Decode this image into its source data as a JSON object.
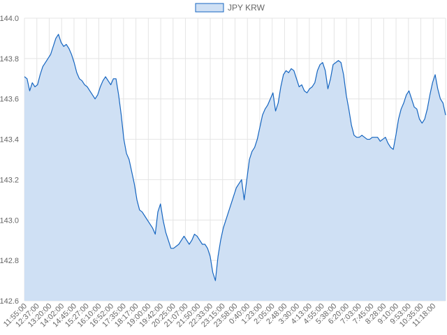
{
  "colors": {
    "line": "#1565c0",
    "fill": "#cfe0f4",
    "grid": "#e4e4e4",
    "text": "#666666"
  },
  "chart_data": {
    "type": "area",
    "title": "",
    "xlabel": "",
    "ylabel": "",
    "legend": {
      "position": "top-center",
      "entries": [
        "JPY KRW"
      ]
    },
    "grid": true,
    "ylim": [
      142.6,
      144.0
    ],
    "yticks": [
      144.0,
      143.8,
      143.6,
      143.4,
      143.2,
      143.0,
      142.8,
      142.6
    ],
    "ytick_labels": [
      "144.0",
      "143.8",
      "143.6",
      "143.4",
      "143.2",
      "143.0",
      "142.8",
      "142.6"
    ],
    "x_tick_labels": [
      "11:55:00",
      "12:37:00",
      "13:20:00",
      "14:02:00",
      "14:45:00",
      "15:27:00",
      "16:10:00",
      "16:52:00",
      "17:35:00",
      "18:17:00",
      "19:00:00",
      "19:42:00",
      "20:25:00",
      "21:07:00",
      "21:50:00",
      "22:33:00",
      "23:15:00",
      "23:58:00",
      "0:40:00",
      "1:23:00",
      "2:05:00",
      "2:48:00",
      "3:30:00",
      "4:13:00",
      "4:55:00",
      "5:38:00",
      "6:20:00",
      "7:03:00",
      "7:45:00",
      "8:28:00",
      "9:10:00",
      "9:53:00",
      "10:35:00",
      "11:18:00"
    ],
    "series": [
      {
        "name": "JPY KRW",
        "values": [
          143.71,
          143.7,
          143.64,
          143.68,
          143.66,
          143.67,
          143.72,
          143.76,
          143.78,
          143.8,
          143.82,
          143.86,
          143.9,
          143.92,
          143.88,
          143.86,
          143.87,
          143.85,
          143.82,
          143.78,
          143.73,
          143.7,
          143.69,
          143.67,
          143.66,
          143.64,
          143.62,
          143.6,
          143.62,
          143.66,
          143.69,
          143.71,
          143.69,
          143.67,
          143.7,
          143.7,
          143.62,
          143.52,
          143.4,
          143.33,
          143.3,
          143.24,
          143.18,
          143.1,
          143.05,
          143.04,
          143.02,
          143.0,
          142.98,
          142.96,
          142.93,
          143.04,
          143.08,
          143.0,
          142.94,
          142.9,
          142.86,
          142.86,
          142.87,
          142.88,
          142.9,
          142.92,
          142.9,
          142.88,
          142.9,
          142.93,
          142.92,
          142.9,
          142.88,
          142.88,
          142.86,
          142.82,
          142.74,
          142.7,
          142.82,
          142.9,
          142.96,
          143.0,
          143.04,
          143.08,
          143.12,
          143.16,
          143.18,
          143.2,
          143.1,
          143.2,
          143.3,
          143.34,
          143.36,
          143.4,
          143.46,
          143.52,
          143.55,
          143.57,
          143.6,
          143.63,
          143.54,
          143.58,
          143.66,
          143.72,
          143.74,
          143.73,
          143.75,
          143.74,
          143.7,
          143.66,
          143.67,
          143.64,
          143.63,
          143.65,
          143.66,
          143.68,
          143.74,
          143.77,
          143.78,
          143.74,
          143.65,
          143.7,
          143.77,
          143.78,
          143.79,
          143.78,
          143.72,
          143.62,
          143.55,
          143.47,
          143.42,
          143.41,
          143.41,
          143.42,
          143.41,
          143.4,
          143.4,
          143.41,
          143.41,
          143.41,
          143.39,
          143.4,
          143.41,
          143.38,
          143.36,
          143.35,
          143.42,
          143.5,
          143.55,
          143.58,
          143.62,
          143.64,
          143.6,
          143.56,
          143.55,
          143.5,
          143.48,
          143.5,
          143.55,
          143.62,
          143.68,
          143.72,
          143.65,
          143.6,
          143.58,
          143.52
        ]
      }
    ]
  }
}
